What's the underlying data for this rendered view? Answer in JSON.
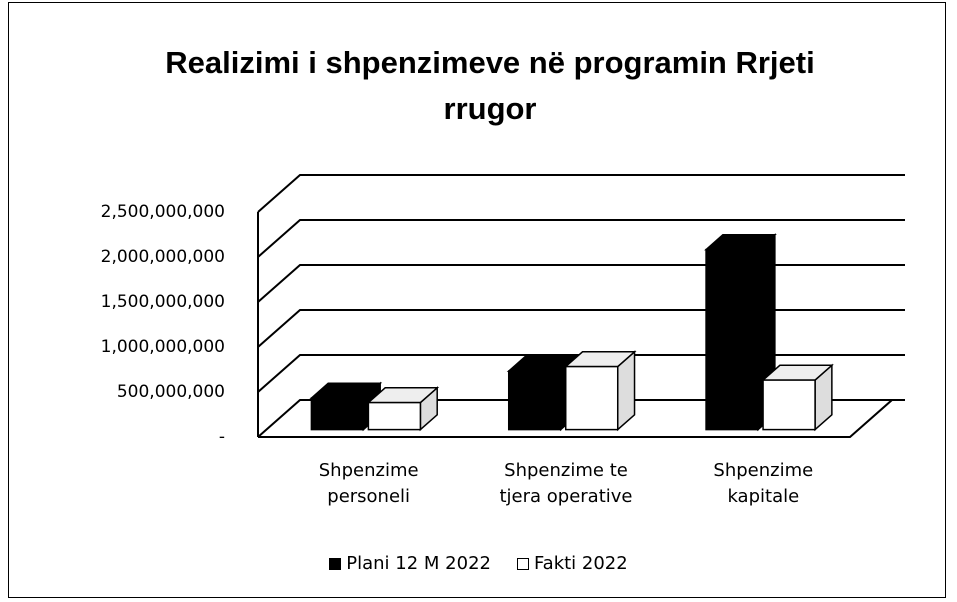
{
  "chart_data": {
    "type": "bar3d",
    "title": "Realizimi i shpenzimeve në programin Rrjeti rrugor",
    "categories": [
      "Shpenzime personeli",
      "Shpenzime te tjera operative",
      "Shpenzime kapitale"
    ],
    "series": [
      {
        "name": "Plani 12 M 2022",
        "color": "#000000",
        "values": [
          350000000,
          650000000,
          2000000000
        ]
      },
      {
        "name": "Fakti 2022",
        "color": "#ffffff",
        "values": [
          300000000,
          700000000,
          550000000
        ]
      }
    ],
    "ylim": [
      0,
      2500000000
    ],
    "yticks": [
      {
        "value": 0,
        "label": "-"
      },
      {
        "value": 500000000,
        "label": "500,000,000"
      },
      {
        "value": 1000000000,
        "label": "1,000,000,000"
      },
      {
        "value": 1500000000,
        "label": "1,500,000,000"
      },
      {
        "value": 2000000000,
        "label": "2,000,000,000"
      },
      {
        "value": 2500000000,
        "label": "2,500,000,000"
      }
    ],
    "grid": true,
    "legend": "bottom"
  }
}
